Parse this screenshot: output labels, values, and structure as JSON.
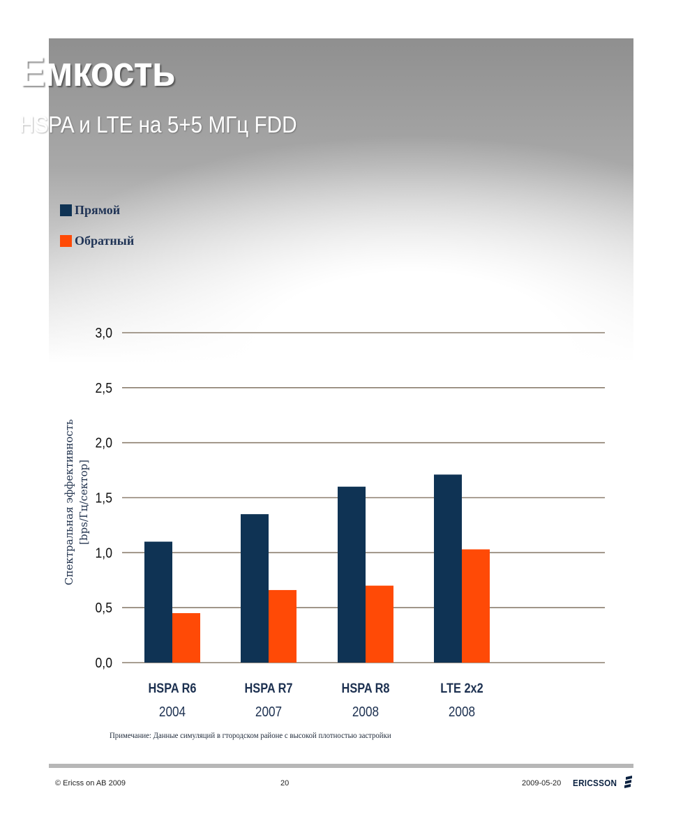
{
  "slide": {
    "title": "Емкость",
    "subtitle": "HSPA и LTE на 5+5 МГц FDD",
    "note": "Примечание: Данные симуляций в гтородском районе с высокой плотностью застройки"
  },
  "footer": {
    "copyright": "© Ericss on AB 2009",
    "page": "20",
    "date": "2009-05-20",
    "logo_text": "ERICSSON"
  },
  "colors": {
    "series_forward": "#0f3354",
    "series_reverse": "#ff4a06",
    "grid": "#8b7e6e"
  },
  "chart_data": {
    "type": "bar",
    "categories": [
      "HSPA R6",
      "HSPA R7",
      "HSPA R8",
      "LTE 2x2"
    ],
    "category_years": [
      "2004",
      "2007",
      "2008",
      "2008"
    ],
    "series": [
      {
        "name": "Прямой",
        "values": [
          1.1,
          1.35,
          1.6,
          1.71
        ]
      },
      {
        "name": "Обратный",
        "values": [
          0.45,
          0.66,
          0.7,
          1.03
        ]
      }
    ],
    "ylabel_lines": [
      "Спектральная эффективность",
      "[bps/Гц/сектор]"
    ],
    "ylim": [
      0,
      3.0
    ],
    "yticks": [
      "0,0",
      "0,5",
      "1,0",
      "1,5",
      "2,0",
      "2,5",
      "3,0"
    ],
    "grid": true,
    "legend_position": "top-left"
  }
}
